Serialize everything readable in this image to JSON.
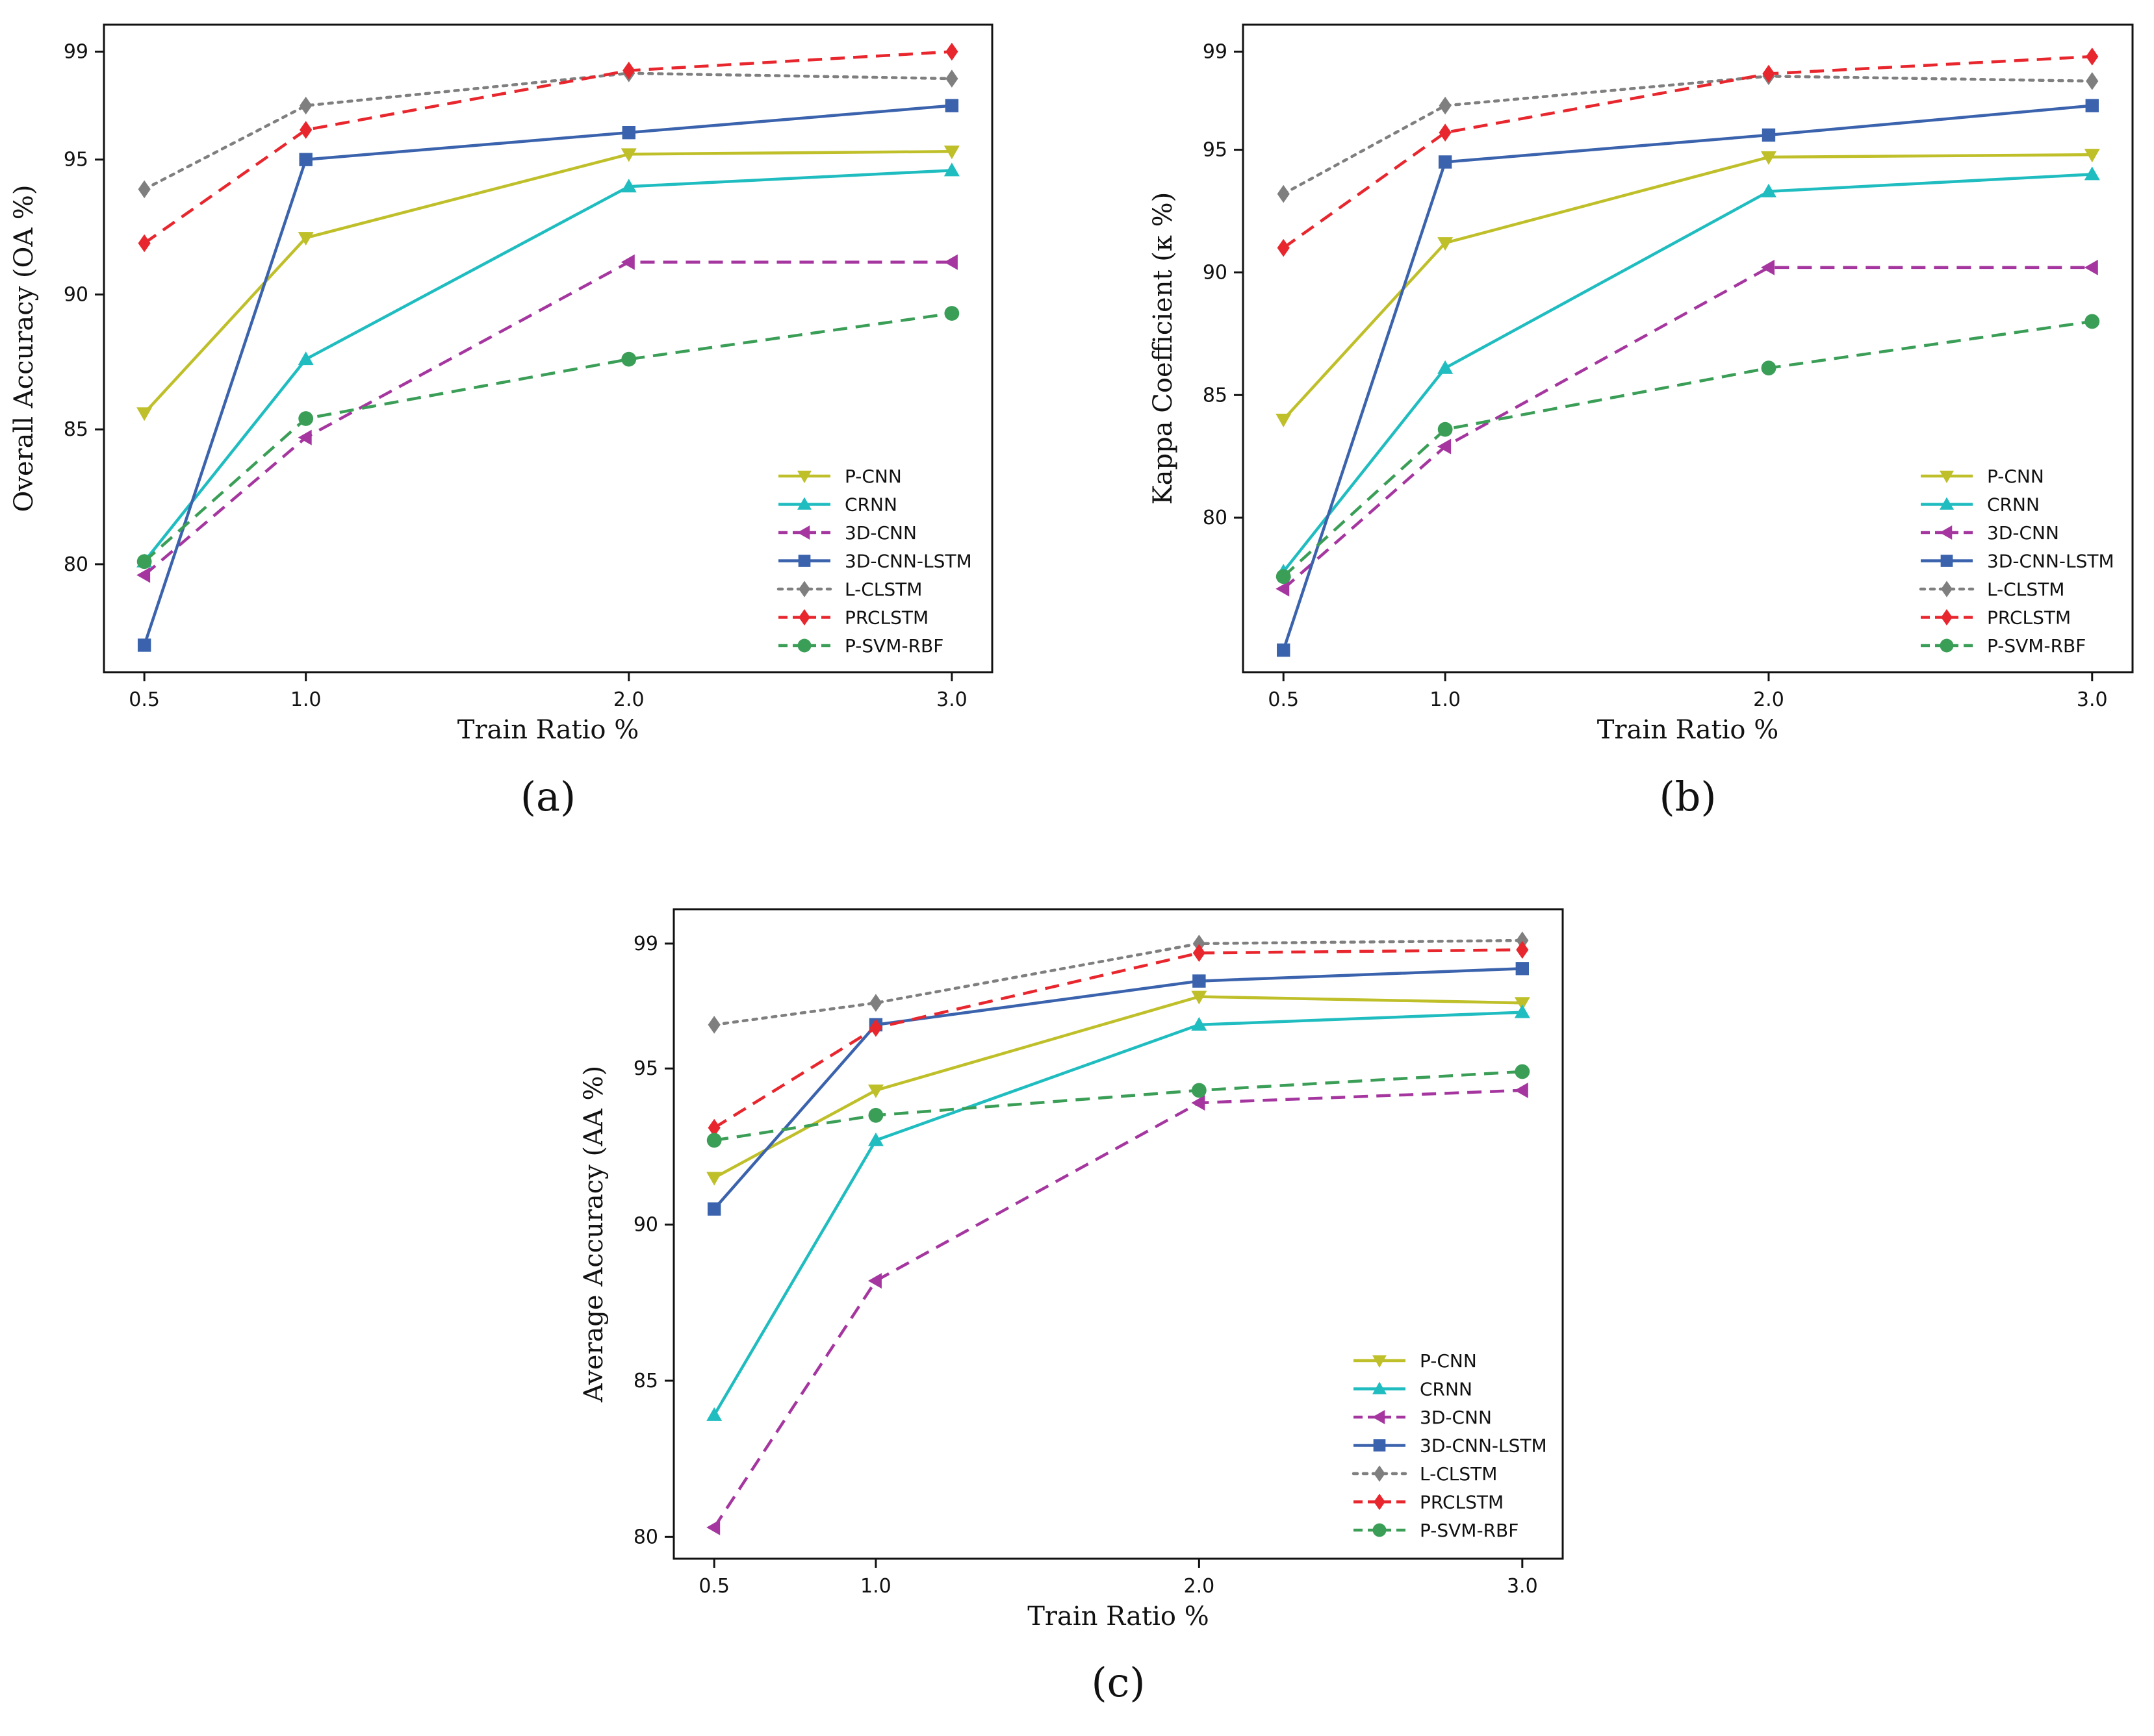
{
  "chart_data": [
    {
      "type": "line",
      "panel_label": "(a)",
      "xlabel": "Train Ratio %",
      "ylabel": "Overall Accuracy (OA %)",
      "categories": [
        "0.5",
        "1.0",
        "2.0",
        "3.0"
      ],
      "x": [
        0.5,
        1.0,
        2.0,
        3.0
      ],
      "xlim": [
        0.375,
        3.125
      ],
      "ylim": [
        76.0,
        100.0
      ],
      "yticks": [
        "80",
        "85",
        "90",
        "95",
        "99"
      ],
      "grid": false,
      "legend_position": "bottom-right",
      "series": [
        {
          "name": "P-CNN",
          "values": [
            85.6,
            92.1,
            95.2,
            95.3
          ]
        },
        {
          "name": "CRNN",
          "values": [
            80.1,
            87.6,
            94.0,
            94.6
          ]
        },
        {
          "name": "3D-CNN",
          "values": [
            79.6,
            84.7,
            91.2,
            91.2
          ]
        },
        {
          "name": "3D-CNN-LSTM",
          "values": [
            77.0,
            95.0,
            96.0,
            97.0
          ]
        },
        {
          "name": "L-CLSTM",
          "values": [
            93.9,
            97.0,
            98.2,
            98.0
          ]
        },
        {
          "name": "PRCLSTM",
          "values": [
            91.9,
            96.1,
            98.3,
            99.0
          ]
        },
        {
          "name": "P-SVM-RBF",
          "values": [
            80.1,
            85.4,
            87.6,
            89.3
          ]
        }
      ]
    },
    {
      "type": "line",
      "panel_label": "(b)",
      "xlabel": "Train Ratio %",
      "ylabel": "Kappa Coefficient (κ %)",
      "categories": [
        "0.5",
        "1.0",
        "2.0",
        "3.0"
      ],
      "x": [
        0.5,
        1.0,
        2.0,
        3.0
      ],
      "xlim": [
        0.375,
        3.125
      ],
      "ylim": [
        73.7,
        100.1
      ],
      "yticks": [
        "80",
        "85",
        "90",
        "95",
        "99"
      ],
      "grid": false,
      "legend_position": "bottom-right",
      "series": [
        {
          "name": "P-CNN",
          "values": [
            84.0,
            91.2,
            94.7,
            94.8
          ]
        },
        {
          "name": "CRNN",
          "values": [
            77.8,
            86.1,
            93.3,
            94.0
          ]
        },
        {
          "name": "3D-CNN",
          "values": [
            77.1,
            82.9,
            90.2,
            90.2
          ]
        },
        {
          "name": "3D-CNN-LSTM",
          "values": [
            74.6,
            94.5,
            95.6,
            96.8
          ]
        },
        {
          "name": "L-CLSTM",
          "values": [
            93.2,
            96.8,
            98.0,
            97.8
          ]
        },
        {
          "name": "PRCLSTM",
          "values": [
            91.0,
            95.7,
            98.1,
            98.8
          ]
        },
        {
          "name": "P-SVM-RBF",
          "values": [
            77.6,
            83.6,
            86.1,
            88.0
          ]
        }
      ]
    },
    {
      "type": "line",
      "panel_label": "(c)",
      "xlabel": "Train Ratio %",
      "ylabel": "Average Accuracy (AA %)",
      "categories": [
        "0.5",
        "1.0",
        "2.0",
        "3.0"
      ],
      "x": [
        0.5,
        1.0,
        2.0,
        3.0
      ],
      "xlim": [
        0.375,
        3.125
      ],
      "ylim": [
        79.3,
        100.1
      ],
      "yticks": [
        "80",
        "85",
        "90",
        "95",
        "99"
      ],
      "grid": false,
      "legend_position": "bottom-right",
      "series": [
        {
          "name": "P-CNN",
          "values": [
            91.5,
            94.3,
            97.3,
            97.1
          ]
        },
        {
          "name": "CRNN",
          "values": [
            83.9,
            92.7,
            96.4,
            96.8
          ]
        },
        {
          "name": "3D-CNN",
          "values": [
            80.3,
            88.2,
            93.9,
            94.3
          ]
        },
        {
          "name": "3D-CNN-LSTM",
          "values": [
            90.5,
            96.4,
            97.8,
            98.2
          ]
        },
        {
          "name": "L-CLSTM",
          "values": [
            96.4,
            97.1,
            99.0,
            99.1
          ]
        },
        {
          "name": "PRCLSTM",
          "values": [
            93.1,
            96.3,
            98.7,
            98.8
          ]
        },
        {
          "name": "P-SVM-RBF",
          "values": [
            92.7,
            93.5,
            94.3,
            94.9
          ]
        }
      ]
    }
  ],
  "series_styles": [
    {
      "color": "#bfbf2a",
      "dash": "solid",
      "marker": "triangle-down"
    },
    {
      "color": "#1fbcc0",
      "dash": "solid",
      "marker": "triangle-up"
    },
    {
      "color": "#a5369f",
      "dash": "dashed",
      "marker": "triangle-left"
    },
    {
      "color": "#3b63ad",
      "dash": "solid",
      "marker": "square"
    },
    {
      "color": "#7f7f7f",
      "dash": "dotted",
      "marker": "diamond"
    },
    {
      "color": "#e8262d",
      "dash": "dashed",
      "marker": "diamond"
    },
    {
      "color": "#3a9e57",
      "dash": "dashed",
      "marker": "circle"
    }
  ]
}
